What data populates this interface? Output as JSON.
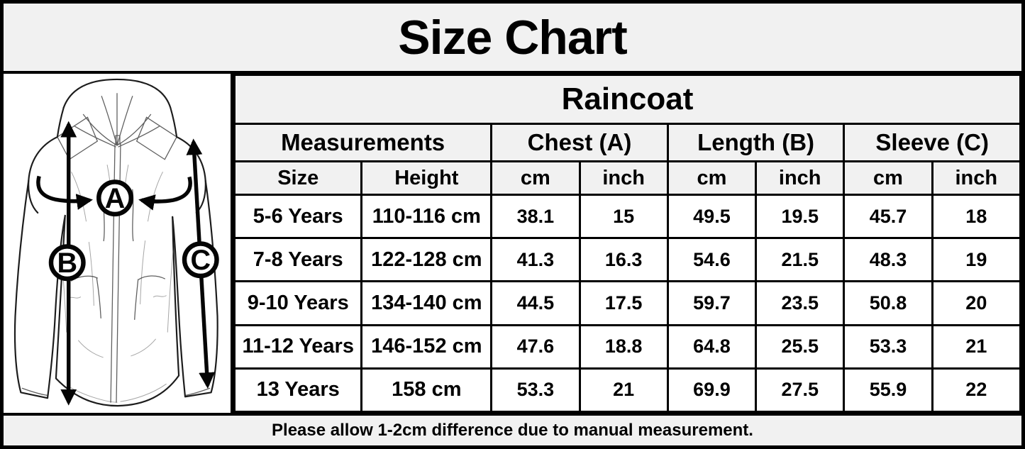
{
  "title": "Size Chart",
  "product": "Raincoat",
  "diagram": {
    "labels": {
      "chest": "A",
      "length": "B",
      "sleeve": "C"
    }
  },
  "table": {
    "group_headers": [
      {
        "label": "Measurements",
        "colspan": 2
      },
      {
        "label": "Chest (A)",
        "colspan": 2
      },
      {
        "label": "Length (B)",
        "colspan": 2
      },
      {
        "label": "Sleeve (C)",
        "colspan": 2
      }
    ],
    "sub_headers": [
      "Size",
      "Height",
      "cm",
      "inch",
      "cm",
      "inch",
      "cm",
      "inch"
    ],
    "rows": [
      [
        "5-6 Years",
        "110-116 cm",
        "38.1",
        "15",
        "49.5",
        "19.5",
        "45.7",
        "18"
      ],
      [
        "7-8 Years",
        "122-128 cm",
        "41.3",
        "16.3",
        "54.6",
        "21.5",
        "48.3",
        "19"
      ],
      [
        "9-10 Years",
        "134-140 cm",
        "44.5",
        "17.5",
        "59.7",
        "23.5",
        "50.8",
        "20"
      ],
      [
        "11-12 Years",
        "146-152 cm",
        "47.6",
        "18.8",
        "64.8",
        "25.5",
        "53.3",
        "21"
      ],
      [
        "13 Years",
        "158 cm",
        "53.3",
        "21",
        "69.9",
        "27.5",
        "55.9",
        "22"
      ]
    ]
  },
  "footer": "Please allow 1-2cm difference due to manual measurement.",
  "colors": {
    "background": "#f1f1f1",
    "cell_background": "#ffffff",
    "border": "#000000",
    "text": "#000000"
  }
}
